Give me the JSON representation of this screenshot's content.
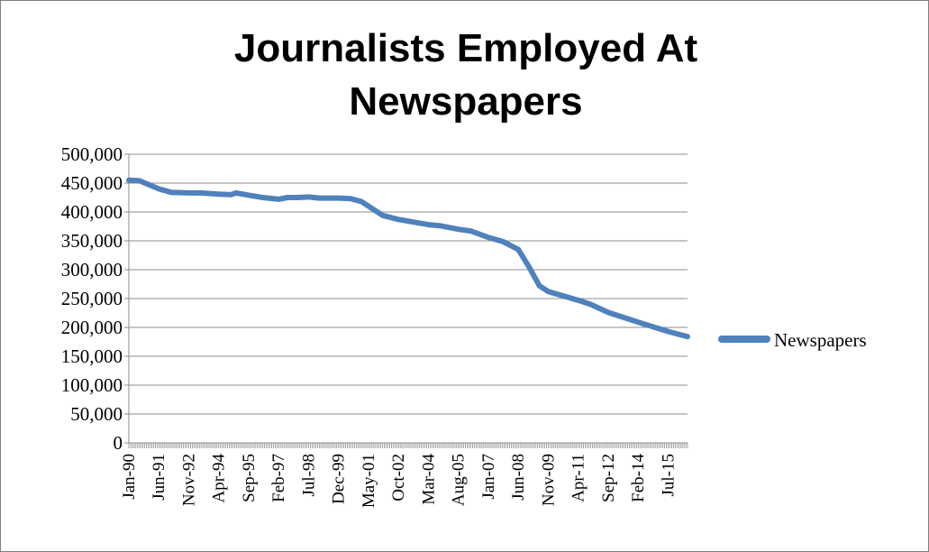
{
  "chart_data": {
    "type": "line",
    "title_lines": [
      "Journalists Employed At",
      "Newspapers"
    ],
    "xlabel": "",
    "ylabel": "",
    "ylim": [
      0,
      500000
    ],
    "y_ticks": [
      0,
      50000,
      100000,
      150000,
      200000,
      250000,
      300000,
      350000,
      400000,
      450000,
      500000
    ],
    "y_tick_labels": [
      "0",
      "50,000",
      "100,000",
      "150,000",
      "200,000",
      "250,000",
      "300,000",
      "350,000",
      "400,000",
      "450,000",
      "500,000"
    ],
    "x_start": "Jan-90",
    "x_end": "Jun-16",
    "x_tick_labels": [
      "Jan-90",
      "Jun-91",
      "Nov-92",
      "Apr-94",
      "Sep-95",
      "Feb-97",
      "Jul-98",
      "Dec-99",
      "May-01",
      "Oct-02",
      "Mar-04",
      "Aug-05",
      "Jan-07",
      "Jun-08",
      "Nov-09",
      "Apr-11",
      "Sep-12",
      "Feb-14",
      "Jul-15"
    ],
    "grid": "horizontal",
    "legend_position": "right",
    "series_color": "#4f81bd",
    "series": [
      {
        "name": "Newspapers",
        "x": [
          "Jan-90",
          "Jul-90",
          "Jun-91",
          "Jan-92",
          "Nov-92",
          "Jun-93",
          "Apr-94",
          "Nov-94",
          "Feb-95",
          "Sep-95",
          "May-96",
          "Feb-97",
          "Jul-97",
          "Jan-98",
          "Jul-98",
          "Jan-99",
          "Dec-99",
          "Jul-00",
          "Jan-01",
          "May-01",
          "Jan-02",
          "Oct-02",
          "Mar-04",
          "Oct-04",
          "Aug-05",
          "Mar-06",
          "Jan-07",
          "Sep-07",
          "Jun-08",
          "Dec-08",
          "Jun-09",
          "Nov-09",
          "Apr-11",
          "Nov-11",
          "Sep-12",
          "Feb-14",
          "Jul-15",
          "Jun-16"
        ],
        "values": [
          455000,
          454000,
          440000,
          434000,
          433000,
          433000,
          431000,
          430000,
          433000,
          429000,
          425000,
          422000,
          425000,
          425000,
          426000,
          424000,
          424000,
          423000,
          418000,
          410000,
          394000,
          387000,
          378000,
          376000,
          370000,
          367000,
          356000,
          349000,
          335000,
          305000,
          272000,
          262000,
          247000,
          240000,
          226000,
          209000,
          193000,
          184000
        ]
      }
    ]
  }
}
